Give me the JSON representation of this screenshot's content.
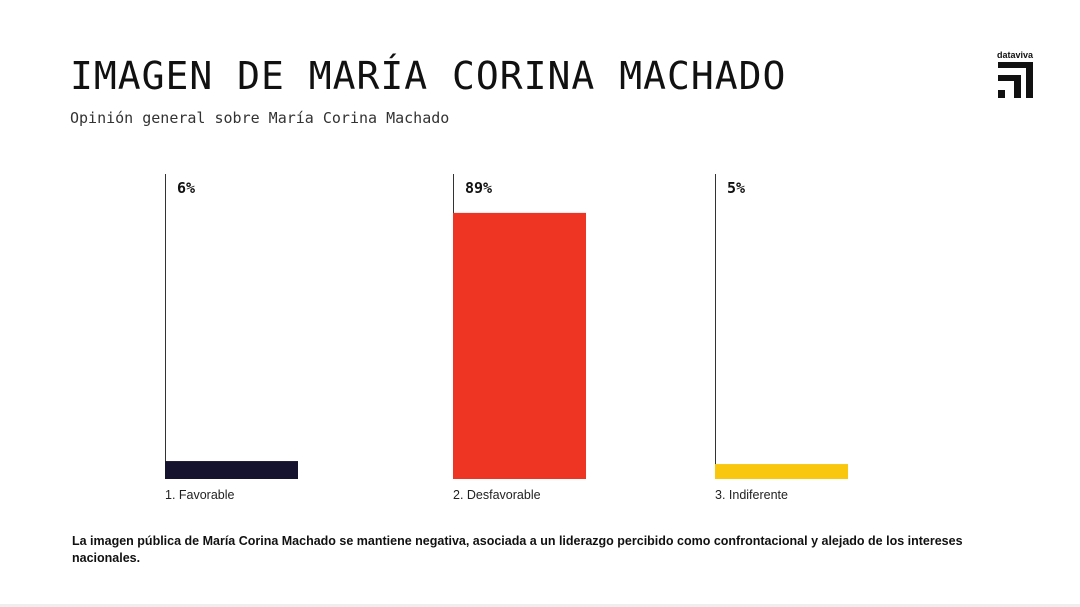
{
  "title": "IMAGEN DE MARÍA CORINA MACHADO",
  "subtitle": "Opinión general sobre María Corina Machado",
  "brand": "dataviva",
  "footnote": "La imagen pública de María Corina Machado se mantiene negativa, asociada a un liderazgo percibido como confrontacional y alejado de los intereses nacionales.",
  "chart_data": {
    "type": "bar",
    "categories": [
      "1. Favorable",
      "2. Desfavorable",
      "3. Indiferente"
    ],
    "values": [
      6,
      89,
      5
    ],
    "value_labels": [
      "6%",
      "89%",
      "5%"
    ],
    "unit": "%",
    "colors": [
      "#16132e",
      "#ee3524",
      "#f9c80e"
    ],
    "ylim": [
      0,
      100
    ],
    "grid": false,
    "legend": "none"
  }
}
